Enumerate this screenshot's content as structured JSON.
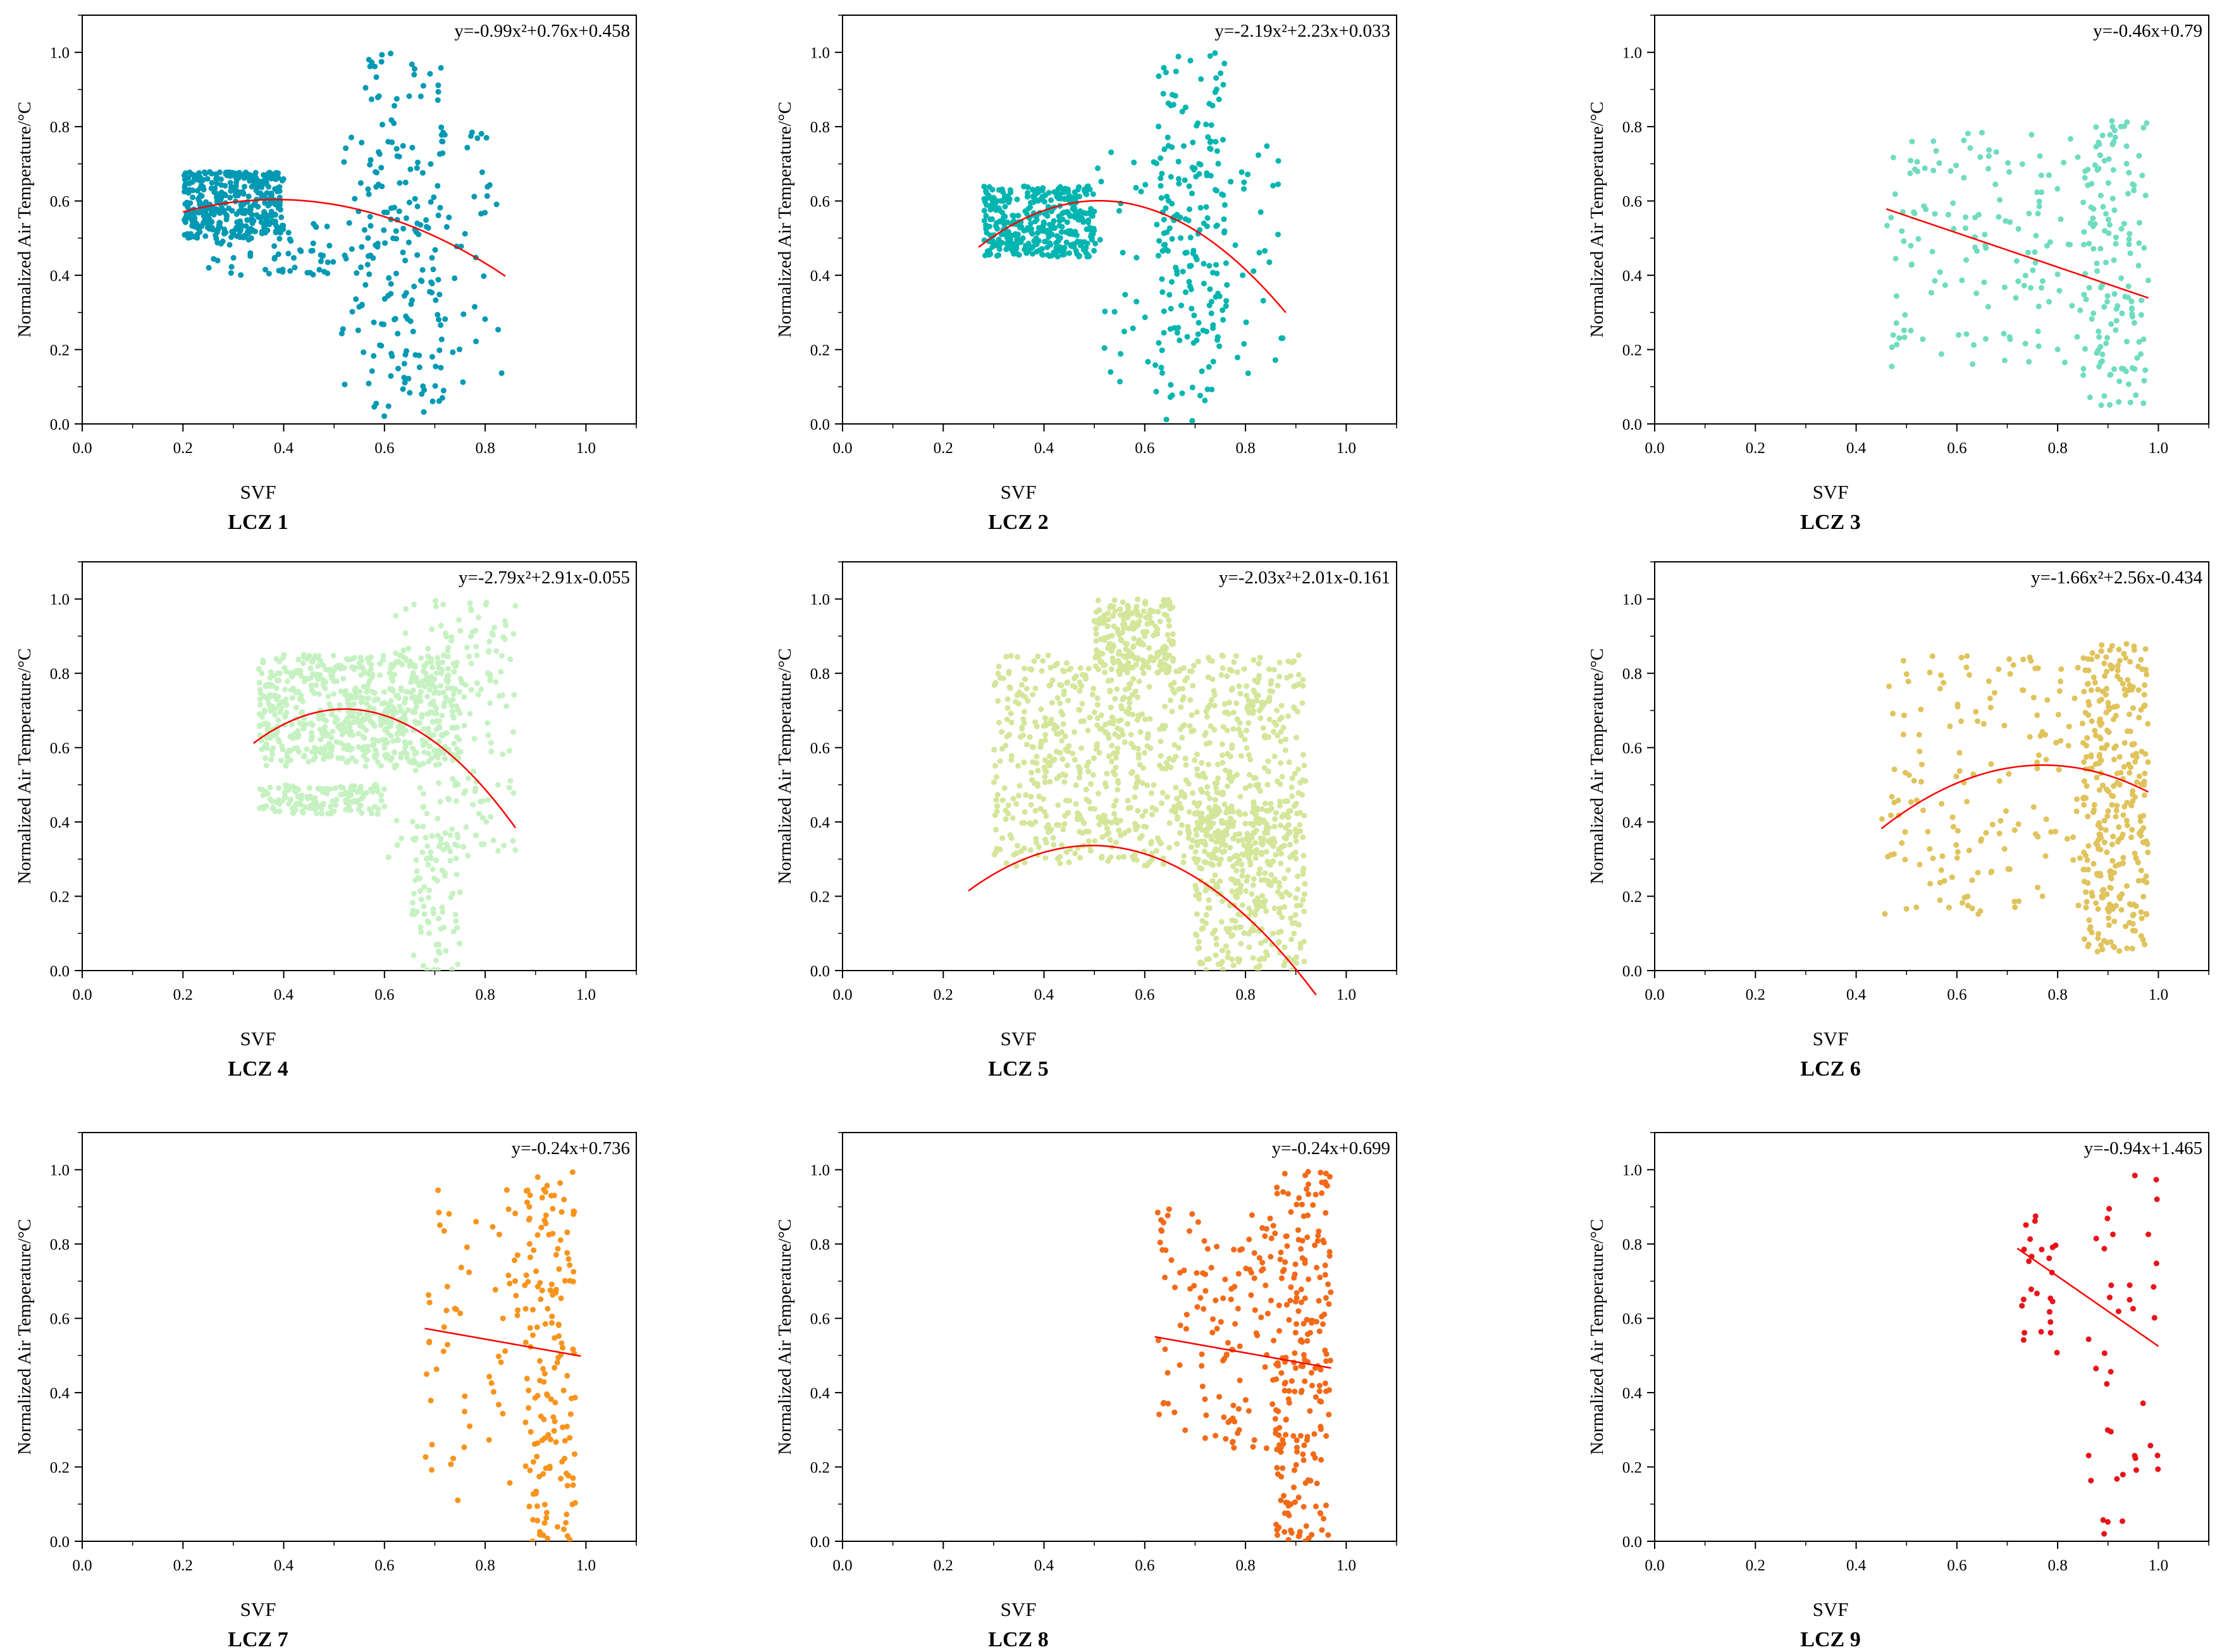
{
  "chart_data": [
    {
      "type": "scatter",
      "panel_title": "LCZ 1",
      "color": "#0099b3",
      "equation": "y=-0.99x²+0.76x+0.458",
      "fit": {
        "kind": "quadratic",
        "coef": [
          -0.99,
          0.76,
          0.458
        ],
        "x_range": [
          0.2,
          0.84
        ]
      },
      "xlabel": "SVF",
      "ylabel": "Normalized Air Temperature/°C",
      "xlim": [
        0.0,
        1.1
      ],
      "ylim": [
        0.0,
        1.1
      ],
      "xticks": [
        "0.0",
        "0.2",
        "0.4",
        "0.6",
        "0.8",
        "1.0"
      ],
      "yticks": [
        "0.0",
        "0.2",
        "0.4",
        "0.6",
        "0.8",
        "1.0"
      ],
      "clusters": [
        {
          "n": 380,
          "x": [
            0.2,
            0.4
          ],
          "y": [
            0.5,
            0.68
          ]
        },
        {
          "n": 60,
          "x": [
            0.25,
            0.5
          ],
          "y": [
            0.4,
            0.55
          ]
        },
        {
          "n": 150,
          "x": [
            0.55,
            0.72
          ],
          "y": [
            0.0,
            1.0
          ]
        },
        {
          "n": 90,
          "x": [
            0.5,
            0.84
          ],
          "y": [
            0.1,
            0.8
          ]
        }
      ]
    },
    {
      "type": "scatter",
      "panel_title": "LCZ 2",
      "color": "#00b5b0",
      "equation": "y=-2.19x²+2.23x+0.033",
      "fit": {
        "kind": "quadratic",
        "coef": [
          -2.19,
          2.23,
          0.033
        ],
        "x_range": [
          0.27,
          0.88
        ]
      },
      "xlabel": "SVF",
      "ylabel": "Normalized Air Temperature/°C",
      "xlim": [
        0.0,
        1.1
      ],
      "ylim": [
        0.0,
        1.1
      ],
      "xticks": [
        "0.0",
        "0.2",
        "0.4",
        "0.6",
        "0.8",
        "1.0"
      ],
      "yticks": [
        "0.0",
        "0.2",
        "0.4",
        "0.6",
        "0.8",
        "1.0"
      ],
      "clusters": [
        {
          "n": 380,
          "x": [
            0.28,
            0.5
          ],
          "y": [
            0.45,
            0.64
          ]
        },
        {
          "n": 160,
          "x": [
            0.62,
            0.76
          ],
          "y": [
            0.0,
            1.0
          ]
        },
        {
          "n": 90,
          "x": [
            0.5,
            0.88
          ],
          "y": [
            0.1,
            0.75
          ]
        }
      ]
    },
    {
      "type": "scatter",
      "panel_title": "LCZ 3",
      "color": "#6fdcc0",
      "equation": "y=-0.46x+0.79",
      "fit": {
        "kind": "linear",
        "coef": [
          -0.46,
          0.79
        ],
        "x_range": [
          0.46,
          0.98
        ]
      },
      "xlabel": "SVF",
      "ylabel": "Normalized Air Temperature/°C",
      "xlim": [
        0.0,
        1.1
      ],
      "ylim": [
        0.0,
        1.1
      ],
      "xticks": [
        "0.0",
        "0.2",
        "0.4",
        "0.6",
        "0.8",
        "1.0"
      ],
      "yticks": [
        "0.0",
        "0.2",
        "0.4",
        "0.6",
        "0.8",
        "1.0"
      ],
      "clusters": [
        {
          "n": 140,
          "x": [
            0.46,
            0.85
          ],
          "y": [
            0.15,
            0.8
          ]
        },
        {
          "n": 150,
          "x": [
            0.85,
            0.98
          ],
          "y": [
            0.05,
            0.82
          ]
        }
      ]
    },
    {
      "type": "scatter",
      "panel_title": "LCZ 4",
      "color": "#c6f2c2",
      "equation": "y=-2.79x²+2.91x-0.055",
      "fit": {
        "kind": "quadratic",
        "coef": [
          -2.79,
          2.91,
          -0.055
        ],
        "x_range": [
          0.34,
          0.86
        ]
      },
      "xlabel": "SVF",
      "ylabel": "Normalized Air Temperature/°C",
      "xlim": [
        0.0,
        1.1
      ],
      "ylim": [
        0.0,
        1.1
      ],
      "xticks": [
        "0.0",
        "0.2",
        "0.4",
        "0.6",
        "0.8",
        "1.0"
      ],
      "yticks": [
        "0.0",
        "0.2",
        "0.4",
        "0.6",
        "0.8",
        "1.0"
      ],
      "clusters": [
        {
          "n": 650,
          "x": [
            0.35,
            0.75
          ],
          "y": [
            0.55,
            0.85
          ]
        },
        {
          "n": 150,
          "x": [
            0.35,
            0.6
          ],
          "y": [
            0.42,
            0.5
          ]
        },
        {
          "n": 200,
          "x": [
            0.6,
            0.86
          ],
          "y": [
            0.3,
            1.0
          ]
        },
        {
          "n": 80,
          "x": [
            0.65,
            0.75
          ],
          "y": [
            0.0,
            0.4
          ]
        }
      ]
    },
    {
      "type": "scatter",
      "panel_title": "LCZ 5",
      "color": "#d4e69a",
      "equation": "y=-2.03x²+2.01x-0.161",
      "fit": {
        "kind": "quadratic",
        "coef": [
          -2.03,
          2.01,
          -0.161
        ],
        "x_range": [
          0.25,
          0.94
        ]
      },
      "xlabel": "SVF",
      "ylabel": "Normalized Air Temperature/°C",
      "xlim": [
        0.0,
        1.1
      ],
      "ylim": [
        0.0,
        1.1
      ],
      "xticks": [
        "0.0",
        "0.2",
        "0.4",
        "0.6",
        "0.8",
        "1.0"
      ],
      "yticks": [
        "0.0",
        "0.2",
        "0.4",
        "0.6",
        "0.8",
        "1.0"
      ],
      "clusters": [
        {
          "n": 900,
          "x": [
            0.3,
            0.92
          ],
          "y": [
            0.28,
            0.85
          ]
        },
        {
          "n": 200,
          "x": [
            0.5,
            0.66
          ],
          "y": [
            0.8,
            1.0
          ]
        },
        {
          "n": 350,
          "x": [
            0.7,
            0.92
          ],
          "y": [
            0.0,
            0.45
          ]
        }
      ]
    },
    {
      "type": "scatter",
      "panel_title": "LCZ 6",
      "color": "#e0c35c",
      "equation": "y=-1.66x²+2.56x-0.434",
      "fit": {
        "kind": "quadratic",
        "coef": [
          -1.66,
          2.56,
          -0.434
        ],
        "x_range": [
          0.45,
          0.98
        ]
      },
      "xlabel": "SVF",
      "ylabel": "Normalized Air Temperature/°C",
      "xlim": [
        0.0,
        1.1
      ],
      "ylim": [
        0.0,
        1.1
      ],
      "xticks": [
        "0.0",
        "0.2",
        "0.4",
        "0.6",
        "0.8",
        "1.0"
      ],
      "yticks": [
        "0.0",
        "0.2",
        "0.4",
        "0.6",
        "0.8",
        "1.0"
      ],
      "clusters": [
        {
          "n": 160,
          "x": [
            0.45,
            0.85
          ],
          "y": [
            0.15,
            0.85
          ]
        },
        {
          "n": 320,
          "x": [
            0.85,
            0.98
          ],
          "y": [
            0.05,
            0.88
          ]
        }
      ]
    },
    {
      "type": "scatter",
      "panel_title": "LCZ 7",
      "color": "#f7941d",
      "equation": "y=-0.24x+0.736",
      "fit": {
        "kind": "linear",
        "coef": [
          -0.24,
          0.736
        ],
        "x_range": [
          0.68,
          0.99
        ]
      },
      "xlabel": "SVF",
      "ylabel": "Normalized Air Temperature/°C",
      "xlim": [
        0.0,
        1.1
      ],
      "ylim": [
        0.0,
        1.1
      ],
      "xticks": [
        "0.0",
        "0.2",
        "0.4",
        "0.6",
        "0.8",
        "1.0"
      ],
      "yticks": [
        "0.0",
        "0.2",
        "0.4",
        "0.6",
        "0.8",
        "1.0"
      ],
      "clusters": [
        {
          "n": 60,
          "x": [
            0.68,
            0.88
          ],
          "y": [
            0.05,
            0.95
          ]
        },
        {
          "n": 160,
          "x": [
            0.88,
            0.98
          ],
          "y": [
            0.0,
            1.0
          ]
        }
      ]
    },
    {
      "type": "scatter",
      "panel_title": "LCZ 8",
      "color": "#f26a18",
      "equation": "y=-0.24x+0.699",
      "fit": {
        "kind": "linear",
        "coef": [
          -0.24,
          0.699
        ],
        "x_range": [
          0.62,
          0.97
        ]
      },
      "xlabel": "SVF",
      "ylabel": "Normalized Air Temperature/°C",
      "xlim": [
        0.0,
        1.1
      ],
      "ylim": [
        0.0,
        1.1
      ],
      "xticks": [
        "0.0",
        "0.2",
        "0.4",
        "0.6",
        "0.8",
        "1.0"
      ],
      "yticks": [
        "0.0",
        "0.2",
        "0.4",
        "0.6",
        "0.8",
        "1.0"
      ],
      "clusters": [
        {
          "n": 130,
          "x": [
            0.62,
            0.86
          ],
          "y": [
            0.25,
            0.9
          ]
        },
        {
          "n": 220,
          "x": [
            0.86,
            0.97
          ],
          "y": [
            0.0,
            1.0
          ]
        }
      ]
    },
    {
      "type": "scatter",
      "panel_title": "LCZ 9",
      "color": "#e8141c",
      "equation": "y=-0.94x+1.465",
      "fit": {
        "kind": "linear",
        "coef": [
          -0.94,
          1.465
        ],
        "x_range": [
          0.72,
          1.0
        ]
      },
      "xlabel": "SVF",
      "ylabel": "Normalized Air Temperature/°C",
      "xlim": [
        0.0,
        1.1
      ],
      "ylim": [
        0.0,
        1.1
      ],
      "xticks": [
        "0.0",
        "0.2",
        "0.4",
        "0.6",
        "0.8",
        "1.0"
      ],
      "yticks": [
        "0.0",
        "0.2",
        "0.4",
        "0.6",
        "0.8",
        "1.0"
      ],
      "clusters": [
        {
          "n": 25,
          "x": [
            0.72,
            0.8
          ],
          "y": [
            0.45,
            0.9
          ]
        },
        {
          "n": 40,
          "x": [
            0.86,
            1.0
          ],
          "y": [
            0.0,
            1.0
          ]
        }
      ]
    }
  ]
}
